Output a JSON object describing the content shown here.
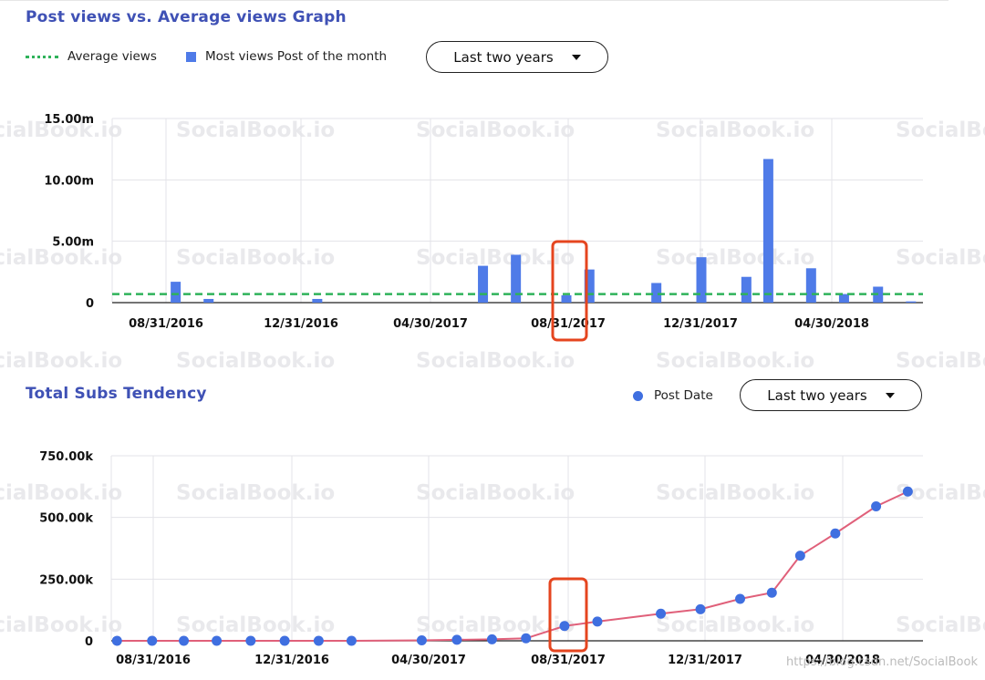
{
  "post_views": {
    "title": "Post views vs. Average views Graph",
    "legend": {
      "average": "Average views",
      "most": "Most views Post of the month"
    },
    "dropdown": "Last two years"
  },
  "subs": {
    "title": "Total Subs Tendency",
    "legend": {
      "post_date": "Post Date"
    },
    "dropdown": "Last two years"
  },
  "watermark": "SocialBook.io",
  "credit": "https://blog.csdn.net/SocialBook",
  "colors": {
    "bar": "#4f7be8",
    "average_line": "#2fb25a",
    "subs_line": "#e0607a",
    "subs_point": "#3f6fe0",
    "highlight": "#e5451f",
    "title": "#3f51b5"
  },
  "chart_data": [
    {
      "type": "bar",
      "x_ticks": [
        "08/31/2016",
        "12/31/2016",
        "04/30/2017",
        "08/31/2017",
        "12/31/2017",
        "04/30/2018"
      ],
      "y_ticks": [
        "15.00m",
        "10.00m",
        "5.00m",
        "0"
      ],
      "ylim": [
        0,
        15
      ],
      "unit": "m",
      "series": [
        {
          "name": "Most views Post of the month",
          "points": [
            {
              "date": "2016-09-08",
              "value": 1.7
            },
            {
              "date": "2016-10-08",
              "value": 0.3
            },
            {
              "date": "2017-01-15",
              "value": 0.3
            },
            {
              "date": "2017-06-15",
              "value": 3.0
            },
            {
              "date": "2017-07-15",
              "value": 3.9
            },
            {
              "date": "2017-08-30",
              "value": 0.6
            },
            {
              "date": "2017-09-20",
              "value": 2.7
            },
            {
              "date": "2017-11-20",
              "value": 1.6
            },
            {
              "date": "2017-12-31",
              "value": 3.7
            },
            {
              "date": "2018-02-10",
              "value": 2.1
            },
            {
              "date": "2018-03-02",
              "value": 11.7
            },
            {
              "date": "2018-04-10",
              "value": 2.8
            },
            {
              "date": "2018-05-10",
              "value": 0.7
            },
            {
              "date": "2018-06-10",
              "value": 1.3
            },
            {
              "date": "2018-07-10",
              "value": 0.1
            }
          ]
        },
        {
          "name": "Average views",
          "value": 0.7
        }
      ],
      "highlight": "08/31/2017",
      "grid": true
    },
    {
      "type": "line",
      "x_ticks": [
        "08/31/2016",
        "12/31/2016",
        "04/30/2017",
        "08/31/2017",
        "12/31/2017",
        "04/30/2018"
      ],
      "y_ticks": [
        "750.00k",
        "500.00k",
        "250.00k",
        "0"
      ],
      "ylim": [
        0,
        750
      ],
      "unit": "k",
      "series": [
        {
          "name": "Post Date",
          "points": [
            {
              "date": "2016-07-30",
              "value": 0
            },
            {
              "date": "2016-08-30",
              "value": 0
            },
            {
              "date": "2016-09-27",
              "value": 0
            },
            {
              "date": "2016-10-26",
              "value": 0
            },
            {
              "date": "2016-11-25",
              "value": 0
            },
            {
              "date": "2016-12-25",
              "value": 0
            },
            {
              "date": "2017-01-24",
              "value": 0
            },
            {
              "date": "2017-02-22",
              "value": 0
            },
            {
              "date": "2017-04-25",
              "value": 2
            },
            {
              "date": "2017-05-26",
              "value": 4
            },
            {
              "date": "2017-06-26",
              "value": 6
            },
            {
              "date": "2017-07-26",
              "value": 10
            },
            {
              "date": "2017-08-29",
              "value": 60
            },
            {
              "date": "2017-09-27",
              "value": 78
            },
            {
              "date": "2017-11-22",
              "value": 110
            },
            {
              "date": "2017-12-27",
              "value": 128
            },
            {
              "date": "2018-01-31",
              "value": 170
            },
            {
              "date": "2018-02-28",
              "value": 195
            },
            {
              "date": "2018-03-25",
              "value": 345
            },
            {
              "date": "2018-04-25",
              "value": 435
            },
            {
              "date": "2018-05-31",
              "value": 545
            },
            {
              "date": "2018-06-28",
              "value": 605
            }
          ]
        }
      ],
      "highlight": "08/31/2017",
      "grid": true
    }
  ]
}
